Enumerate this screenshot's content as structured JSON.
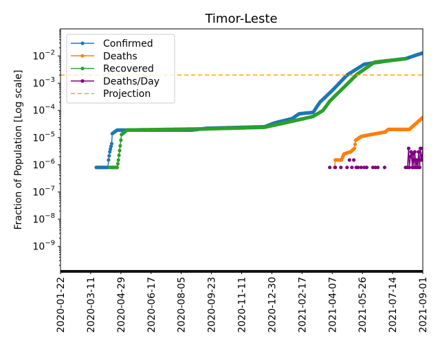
{
  "chart_data": {
    "type": "line",
    "title": "Timor-Leste",
    "xlabel": "",
    "ylabel": "Fraction of Population [Log scale]",
    "yscale": "log",
    "ylim": [
      1.2e-10,
      0.1
    ],
    "xlim": [
      "2020-01-22",
      "2021-09-01"
    ],
    "grid": false,
    "legend_placement": "top-left",
    "x_tick_labels": [
      "2020-01-22",
      "2020-03-11",
      "2020-04-29",
      "2020-06-17",
      "2020-08-05",
      "2020-09-23",
      "2020-11-11",
      "2020-12-30",
      "2021-02-17",
      "2021-04-07",
      "2021-05-26",
      "2021-07-14",
      "2021-09-01"
    ],
    "y_ticks": [
      {
        "value": 0.01,
        "base": "10",
        "exp": "−2"
      },
      {
        "value": 0.001,
        "base": "10",
        "exp": "−3"
      },
      {
        "value": 0.0001,
        "base": "10",
        "exp": "−4"
      },
      {
        "value": 1e-05,
        "base": "10",
        "exp": "−5"
      },
      {
        "value": 1e-06,
        "base": "10",
        "exp": "−6"
      },
      {
        "value": 1e-07,
        "base": "10",
        "exp": "−7"
      },
      {
        "value": 1e-08,
        "base": "10",
        "exp": "−8"
      },
      {
        "value": 1e-09,
        "base": "10",
        "exp": "−9"
      }
    ],
    "series": [
      {
        "name": "Confirmed",
        "color": "#1f77b4",
        "style": "line-dots",
        "keypoints": [
          [
            "2020-03-20",
            8e-07
          ],
          [
            "2020-04-08",
            8e-07
          ],
          [
            "2020-04-09",
            1.5e-06
          ],
          [
            "2020-04-11",
            3e-06
          ],
          [
            "2020-04-14",
            6e-06
          ],
          [
            "2020-04-15",
            1.4e-05
          ],
          [
            "2020-04-23",
            1.9e-05
          ],
          [
            "2020-08-23",
            1.9e-05
          ],
          [
            "2020-09-15",
            2.2e-05
          ],
          [
            "2020-12-18",
            2.5e-05
          ],
          [
            "2021-01-04",
            3.5e-05
          ],
          [
            "2021-02-01",
            5e-05
          ],
          [
            "2021-02-12",
            7.5e-05
          ],
          [
            "2021-03-07",
            8.5e-05
          ],
          [
            "2021-03-18",
            0.0002
          ],
          [
            "2021-04-09",
            0.0006
          ],
          [
            "2021-05-01",
            0.002
          ],
          [
            "2021-05-29",
            0.005
          ],
          [
            "2021-07-13",
            0.007
          ],
          [
            "2021-08-04",
            0.008
          ],
          [
            "2021-09-01",
            0.013
          ]
        ]
      },
      {
        "name": "Deaths",
        "color": "#ff7f0e",
        "style": "line-dots",
        "keypoints": [
          [
            "2021-04-11",
            8e-07
          ],
          [
            "2021-04-12",
            1.5e-06
          ],
          [
            "2021-04-22",
            1.5e-06
          ],
          [
            "2021-04-26",
            2.5e-06
          ],
          [
            "2021-05-07",
            3e-06
          ],
          [
            "2021-05-13",
            4e-06
          ],
          [
            "2021-05-15",
            8e-06
          ],
          [
            "2021-05-24",
            1.1e-05
          ],
          [
            "2021-06-09",
            1.3e-05
          ],
          [
            "2021-07-02",
            1.6e-05
          ],
          [
            "2021-07-07",
            2e-05
          ],
          [
            "2021-08-10",
            2e-05
          ],
          [
            "2021-09-01",
            5.5e-05
          ]
        ]
      },
      {
        "name": "Recovered",
        "color": "#2ca02c",
        "style": "line-dots",
        "keypoints": [
          [
            "2020-04-11",
            8e-07
          ],
          [
            "2020-04-23",
            8e-07
          ],
          [
            "2020-04-25",
            1.5e-06
          ],
          [
            "2020-04-28",
            5e-06
          ],
          [
            "2020-04-30",
            1.3e-05
          ],
          [
            "2020-05-09",
            1.9e-05
          ],
          [
            "2020-09-15",
            2.1e-05
          ],
          [
            "2020-12-18",
            2.4e-05
          ],
          [
            "2021-02-01",
            4e-05
          ],
          [
            "2021-03-07",
            6e-05
          ],
          [
            "2021-03-23",
            0.0001
          ],
          [
            "2021-04-03",
            0.00022
          ],
          [
            "2021-05-18",
            0.0022
          ],
          [
            "2021-06-15",
            0.006
          ],
          [
            "2021-08-04",
            0.008
          ]
        ]
      },
      {
        "name": "Deaths/Day",
        "color": "#800080",
        "style": "dots",
        "points": [
          [
            "2021-04-03",
            8e-07
          ],
          [
            "2021-04-12",
            8e-07
          ],
          [
            "2021-04-21",
            8e-07
          ],
          [
            "2021-05-01",
            8e-07
          ],
          [
            "2021-05-05",
            1.5e-06
          ],
          [
            "2021-05-09",
            8e-07
          ],
          [
            "2021-05-12",
            1.5e-06
          ],
          [
            "2021-05-16",
            8e-07
          ],
          [
            "2021-05-19",
            8e-07
          ],
          [
            "2021-05-24",
            8e-07
          ],
          [
            "2021-05-29",
            8e-07
          ],
          [
            "2021-06-02",
            8e-07
          ],
          [
            "2021-06-12",
            8e-07
          ],
          [
            "2021-06-16",
            8e-07
          ],
          [
            "2021-06-20",
            8e-07
          ],
          [
            "2021-07-01",
            8e-07
          ],
          [
            "2021-08-04",
            8e-07
          ],
          [
            "2021-08-07",
            8e-07
          ],
          [
            "2021-08-09",
            4e-06
          ],
          [
            "2021-08-10",
            8e-07
          ],
          [
            "2021-08-12",
            2e-06
          ],
          [
            "2021-08-13",
            3e-06
          ],
          [
            "2021-08-15",
            8e-07
          ],
          [
            "2021-08-16",
            2.5e-06
          ],
          [
            "2021-08-18",
            8e-07
          ],
          [
            "2021-08-19",
            3e-06
          ],
          [
            "2021-08-21",
            8e-07
          ],
          [
            "2021-08-22",
            1.5e-06
          ],
          [
            "2021-08-24",
            8e-07
          ],
          [
            "2021-08-25",
            3e-06
          ],
          [
            "2021-08-27",
            8e-07
          ],
          [
            "2021-08-28",
            4e-06
          ],
          [
            "2021-08-30",
            1.5e-06
          ],
          [
            "2021-09-01",
            4e-06
          ]
        ]
      },
      {
        "name": "Projection",
        "color": "#ffa500",
        "style": "dashed-hline",
        "value": 0.002
      }
    ]
  }
}
